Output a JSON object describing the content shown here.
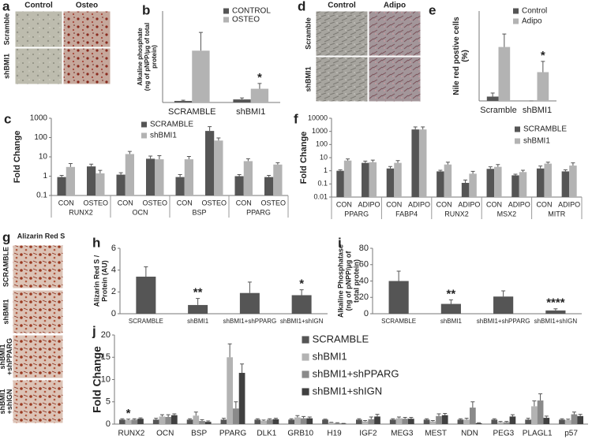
{
  "image_panels": [
    {
      "panel": "a",
      "columns": [
        "Control",
        "Osteo"
      ],
      "rows": [
        "Scramble",
        "shBMI1"
      ]
    },
    {
      "panel": "d",
      "columns": [
        "Control",
        "Adipo"
      ],
      "rows": [
        "Scramble",
        "shBMI1"
      ]
    },
    {
      "panel": "g",
      "title": "Alizarin Red S",
      "rows": [
        "SCRAMBLE",
        "shBMI1",
        [
          "shBMI1",
          "+shPPARG"
        ],
        [
          "shBMI1",
          "+shIGN"
        ]
      ]
    }
  ],
  "chart_data": [
    {
      "type": "bar",
      "panel": "b",
      "ylabel": [
        "Alkaline phosphate",
        "(ng of pNPP/µg of total",
        "protein)"
      ],
      "categories": [
        "SCRAMBLE",
        "shBMI1"
      ],
      "series": [
        {
          "name": "CONTROL",
          "color": "#555555",
          "values": [
            1,
            2
          ],
          "errors": [
            0.5,
            1
          ]
        },
        {
          "name": "OSTEO",
          "color": "#b3b3b3",
          "values": [
            34,
            9
          ],
          "errors": [
            12,
            3.5
          ],
          "markers": [
            null,
            "*"
          ]
        }
      ],
      "ylim": [
        0,
        60
      ],
      "legend": "upper right"
    },
    {
      "type": "bar",
      "panel": "c",
      "ylabel": "Fold Change",
      "log_scale": true,
      "groups": [
        "RUNX2",
        "OCN",
        "BSP",
        "PPARG"
      ],
      "categories": [
        "CON",
        "OSTEO",
        "CON",
        "OSTEO",
        "CON",
        "OSTEO",
        "CON",
        "OSTEO"
      ],
      "series": [
        {
          "name": "SCRAMBLE",
          "color": "#555555",
          "values": [
            0.9,
            3.2,
            1.2,
            8,
            0.9,
            220,
            1,
            0.9
          ],
          "errors": [
            0.2,
            1,
            0.3,
            3,
            0.3,
            150,
            0.2,
            0.2
          ]
        },
        {
          "name": "shBMI1",
          "color": "#b3b3b3",
          "values": [
            3,
            1.4,
            14,
            7.5,
            7.5,
            70,
            6,
            4
          ],
          "errors": [
            1.5,
            0.6,
            5,
            4,
            3,
            25,
            2,
            1
          ]
        }
      ],
      "ylim": [
        0.1,
        1000
      ],
      "yticks": [
        0.1,
        1,
        10,
        100,
        1000
      ],
      "legend": "upper center"
    },
    {
      "type": "bar",
      "panel": "e",
      "ylabel": [
        "Nile red postive cells",
        "(%)"
      ],
      "categories": [
        "Scramble",
        "shBMI1"
      ],
      "series": [
        {
          "name": "Control",
          "color": "#555555",
          "values": [
            1.2,
            0
          ],
          "errors": [
            1,
            0
          ]
        },
        {
          "name": "Adipo",
          "color": "#b3b3b3",
          "values": [
            15,
            8
          ],
          "errors": [
            3.6,
            3
          ],
          "markers": [
            null,
            "*"
          ]
        }
      ],
      "ylim": [
        0,
        25
      ],
      "legend": "upper right"
    },
    {
      "type": "bar",
      "panel": "f",
      "ylabel": "Fold Change",
      "log_scale": true,
      "groups": [
        "PPARG",
        "FABP4",
        "RUNX2",
        "MSX2",
        "MITR"
      ],
      "categories": [
        "CON",
        "ADIPO",
        "CON",
        "ADIPO",
        "CON",
        "ADIPO",
        "CON",
        "ADIPO",
        "CON",
        "ADIPO"
      ],
      "series": [
        {
          "name": "SCRAMBLE",
          "color": "#555555",
          "values": [
            1,
            4,
            1.5,
            1400,
            0.9,
            0.12,
            1.4,
            0.45,
            1.5,
            0.9
          ],
          "errors": [
            0.2,
            1.5,
            0.6,
            800,
            0.2,
            0.08,
            0.6,
            0.1,
            0.8,
            0.3
          ]
        },
        {
          "name": "shBMI1",
          "color": "#b3b3b3",
          "values": [
            6,
            4.5,
            4,
            1400,
            3,
            0.6,
            2,
            0.8,
            3.5,
            2.5
          ],
          "errors": [
            2,
            2,
            2,
            800,
            1.5,
            0.3,
            1,
            0.3,
            1,
            1.5
          ]
        }
      ],
      "ylim": [
        0.01,
        10000
      ],
      "yticks": [
        0.01,
        0.1,
        1,
        10,
        100,
        1000,
        10000
      ],
      "legend": "upper right"
    },
    {
      "type": "bar",
      "panel": "h",
      "ylabel": [
        "Alizarin Red S /",
        "Protein (AU)"
      ],
      "categories": [
        "SCRAMBLE",
        "shBMI1",
        "shBMI1+shPPARG",
        "shBMI1+shIGN"
      ],
      "color": "#555555",
      "values": [
        3.4,
        0.8,
        1.9,
        1.7
      ],
      "errors": [
        0.9,
        0.6,
        1,
        0.5
      ],
      "markers": [
        null,
        "**",
        null,
        "*"
      ],
      "ylim": [
        0,
        6
      ],
      "yticks": [
        0,
        2,
        4,
        6
      ]
    },
    {
      "type": "bar",
      "panel": "i",
      "ylabel": [
        "Alkaline Phosphatase",
        "(ng of pNPP/µg of",
        "total protein)"
      ],
      "categories": [
        "SCRAMBLE",
        "shBMI1",
        "shBMI1+shPPARG",
        "shBMI1+shIGN"
      ],
      "color": "#555555",
      "values": [
        40,
        12,
        21,
        4
      ],
      "errors": [
        12,
        5,
        7,
        2
      ],
      "markers": [
        null,
        "**",
        null,
        "****"
      ],
      "ylim": [
        0,
        80
      ],
      "yticks": [
        0,
        20,
        40,
        60,
        80
      ]
    },
    {
      "type": "bar",
      "panel": "j",
      "ylabel": "Fold Change",
      "categories": [
        "RUNX2",
        "OCN",
        "BSP",
        "PPARG",
        "DLK1",
        "GRB10",
        "H19",
        "IGF2",
        "MEG3",
        "MEST",
        "NDN",
        "PEG3",
        "PLAGL1",
        "p57"
      ],
      "series": [
        {
          "name": "SCRAMBLE",
          "color": "#555555",
          "values": [
            1,
            1,
            1,
            1,
            1,
            1,
            1,
            1,
            1,
            1,
            1,
            1,
            1,
            1
          ],
          "errors": [
            0.2,
            0.3,
            0.2,
            0.3,
            0.2,
            0.2,
            0.1,
            0.2,
            0.2,
            0.2,
            0.2,
            0.2,
            0.3,
            0.2
          ]
        },
        {
          "name": "shBMI1",
          "color": "#b3b3b3",
          "values": [
            0.9,
            1.7,
            1.9,
            15,
            0.7,
            1.5,
            0.3,
            0.6,
            1.3,
            0.6,
            1,
            0.4,
            4,
            0.9
          ],
          "errors": [
            0.2,
            0.4,
            0.8,
            3,
            0.2,
            0.4,
            0.1,
            0.2,
            0.3,
            0.2,
            0.3,
            0.2,
            1.2,
            0.2
          ],
          "markers": [
            "*",
            null,
            null,
            null,
            null,
            null,
            null,
            null,
            null,
            null,
            null,
            null,
            null,
            null
          ]
        },
        {
          "name": "shBMI1+shPPARG",
          "color": "#8a8a8a",
          "values": [
            1,
            1.6,
            0.7,
            3.5,
            1,
            1.3,
            0.2,
            1.1,
            1.2,
            1.8,
            3.7,
            0.4,
            5.3,
            2.2
          ],
          "errors": [
            0.2,
            0.5,
            0.3,
            1.5,
            0.2,
            0.4,
            0.1,
            0.5,
            0.3,
            0.5,
            1.3,
            0.2,
            1.5,
            0.5
          ]
        },
        {
          "name": "shBMI1+shIGN",
          "color": "#404040",
          "values": [
            1.2,
            2,
            0.5,
            11.5,
            1.1,
            1.3,
            0.1,
            1.7,
            1.2,
            2,
            0.2,
            1.7,
            1.4,
            1.8
          ],
          "errors": [
            0.2,
            0.3,
            0.2,
            2,
            0.2,
            0.3,
            0.05,
            0.5,
            0.3,
            0.4,
            0.1,
            0.4,
            0.4,
            0.4
          ]
        }
      ],
      "ylim": [
        0,
        20
      ],
      "yticks": [
        0,
        5,
        10,
        15,
        20
      ],
      "legend": "upper center"
    }
  ]
}
